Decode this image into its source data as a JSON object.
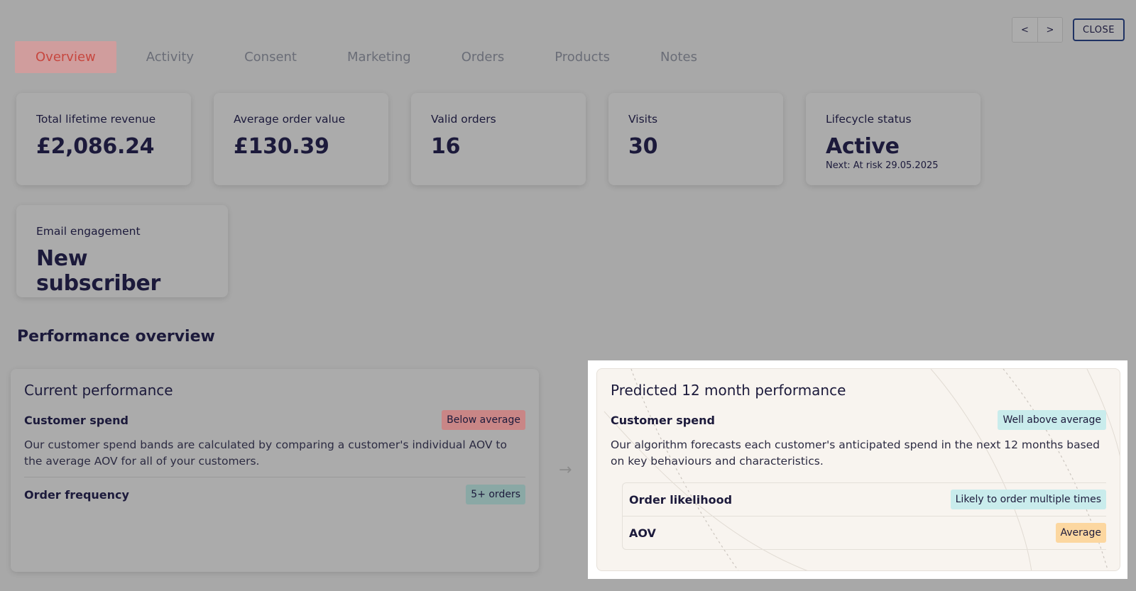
{
  "pager": {
    "prev": "<",
    "next": ">"
  },
  "close_label": "CLOSE",
  "tabs": [
    {
      "label": "Overview",
      "active": true
    },
    {
      "label": "Activity"
    },
    {
      "label": "Consent"
    },
    {
      "label": "Marketing"
    },
    {
      "label": "Orders"
    },
    {
      "label": "Products"
    },
    {
      "label": "Notes"
    }
  ],
  "stats": [
    {
      "label": "Total lifetime revenue",
      "value": "£2,086.24"
    },
    {
      "label": "Average order value",
      "value": "£130.39"
    },
    {
      "label": "Valid orders",
      "value": "16"
    },
    {
      "label": "Visits",
      "value": "30"
    },
    {
      "label": "Lifecycle status",
      "value": "Active",
      "sub": "Next: At risk 29.05.2025"
    }
  ],
  "email": {
    "label": "Email engagement",
    "value": "New subscriber"
  },
  "section_title": "Performance overview",
  "current": {
    "title": "Current performance",
    "spend_label": "Customer spend",
    "spend_badge": "Below average",
    "spend_desc": "Our customer spend bands are calculated by comparing a customer's individual AOV to the average AOV for all of your customers.",
    "freq_label": "Order frequency",
    "freq_badge": "5+ orders"
  },
  "arrow": "→",
  "predicted": {
    "title": "Predicted 12 month performance",
    "spend_label": "Customer spend",
    "spend_badge": "Well above average",
    "spend_desc": "Our algorithm forecasts each customer's anticipated spend in the next 12 months based on key behaviours and characteristics.",
    "likelihood_label": "Order likelihood",
    "likelihood_badge": "Likely to order multiple times",
    "aov_label": "AOV",
    "aov_badge": "Average"
  },
  "colors": {
    "accent": "#c7473f",
    "navy": "#1c1a3b",
    "cyan_badge": "#c9ecec",
    "orange_badge": "#fcd7a0"
  }
}
